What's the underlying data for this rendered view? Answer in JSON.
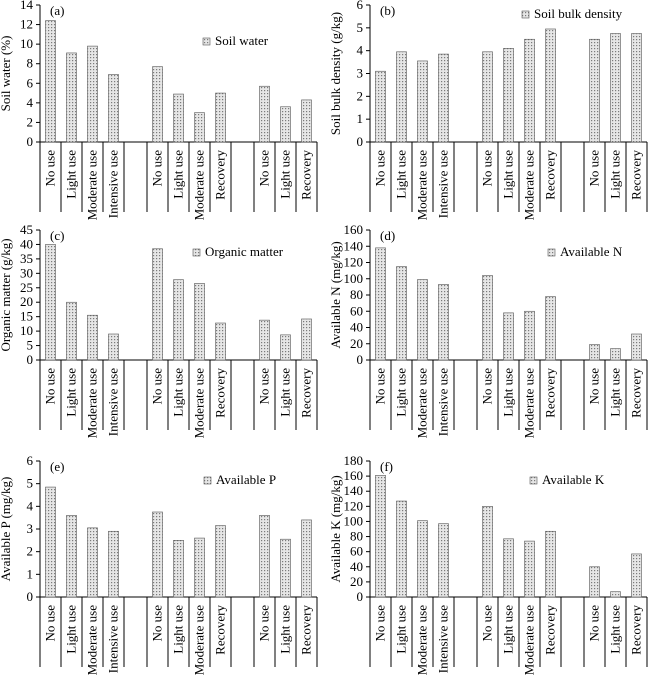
{
  "chart_data": [
    {
      "type": "bar",
      "panel_label": "(a)",
      "ylabel": "Soil water (%)",
      "legend": "Soil water",
      "ylim": [
        0,
        14
      ],
      "yticks": [
        0,
        2,
        4,
        6,
        8,
        10,
        12,
        14
      ],
      "groups": [
        {
          "categories": [
            "No use",
            "Light use",
            "Moderate use",
            "Intensive use"
          ],
          "values": [
            12.4,
            9.1,
            9.8,
            6.9
          ]
        },
        {
          "categories": [
            "No use",
            "Light use",
            "Moderate use",
            "Recovery"
          ],
          "values": [
            7.7,
            4.9,
            3.0,
            5.0
          ]
        },
        {
          "categories": [
            "No use",
            "Light use",
            "Recovery"
          ],
          "values": [
            5.7,
            3.6,
            4.3
          ]
        }
      ]
    },
    {
      "type": "bar",
      "panel_label": "(b)",
      "ylabel": "Soil bulk density (g/kg)",
      "legend": "Soil bulk density",
      "ylim": [
        0,
        6
      ],
      "yticks": [
        0,
        1,
        2,
        3,
        4,
        5,
        6
      ],
      "groups": [
        {
          "categories": [
            "No use",
            "Light use",
            "Moderate use",
            "Intensive use"
          ],
          "values": [
            3.1,
            3.95,
            3.55,
            3.85
          ]
        },
        {
          "categories": [
            "No use",
            "Light use",
            "Moderate use",
            "Recovery"
          ],
          "values": [
            3.95,
            4.1,
            4.5,
            4.95
          ]
        },
        {
          "categories": [
            "No use",
            "Light use",
            "Recovery"
          ],
          "values": [
            4.5,
            4.75,
            4.75
          ]
        }
      ]
    },
    {
      "type": "bar",
      "panel_label": "(c)",
      "ylabel": "Organic matter (g/kg)",
      "legend": "Organic matter",
      "ylim": [
        0,
        45
      ],
      "yticks": [
        0,
        5,
        10,
        15,
        20,
        25,
        30,
        35,
        40,
        45
      ],
      "groups": [
        {
          "categories": [
            "No use",
            "Light use",
            "Moderate use",
            "Intensive use"
          ],
          "values": [
            40,
            20,
            15.5,
            9
          ]
        },
        {
          "categories": [
            "No use",
            "Light use",
            "Moderate use",
            "Recovery"
          ],
          "values": [
            38.5,
            27.8,
            26.5,
            12.8
          ]
        },
        {
          "categories": [
            "No use",
            "Light use",
            "Recovery"
          ],
          "values": [
            13.8,
            8.7,
            14.2
          ]
        }
      ]
    },
    {
      "type": "bar",
      "panel_label": "(d)",
      "ylabel": "Available N (mg/kg)",
      "legend": "Available N",
      "ylim": [
        0,
        160
      ],
      "yticks": [
        0,
        20,
        40,
        60,
        80,
        100,
        120,
        140,
        160
      ],
      "groups": [
        {
          "categories": [
            "No use",
            "Light use",
            "Moderate use",
            "Intensive use"
          ],
          "values": [
            138,
            115,
            99,
            93
          ]
        },
        {
          "categories": [
            "No use",
            "Light use",
            "Moderate use",
            "Recovery"
          ],
          "values": [
            104,
            58,
            60,
            78
          ]
        },
        {
          "categories": [
            "No use",
            "Light use",
            "Recovery"
          ],
          "values": [
            19,
            14,
            32
          ]
        }
      ]
    },
    {
      "type": "bar",
      "panel_label": "(e)",
      "ylabel": "Available P (mg/kg)",
      "legend": "Available P",
      "ylim": [
        0,
        6
      ],
      "yticks": [
        0,
        1,
        2,
        3,
        4,
        5,
        6
      ],
      "groups": [
        {
          "categories": [
            "No use",
            "Light use",
            "Moderate use",
            "Intensive use"
          ],
          "values": [
            4.85,
            3.6,
            3.05,
            2.9
          ]
        },
        {
          "categories": [
            "No use",
            "Light use",
            "Moderate use",
            "Recovery"
          ],
          "values": [
            3.75,
            2.5,
            2.6,
            3.15
          ]
        },
        {
          "categories": [
            "No use",
            "Light use",
            "Recovery"
          ],
          "values": [
            3.6,
            2.55,
            3.4
          ]
        }
      ]
    },
    {
      "type": "bar",
      "panel_label": "(f)",
      "ylabel": "Available K (mg/kg)",
      "legend": "Available K",
      "ylim": [
        0,
        180
      ],
      "yticks": [
        0,
        20,
        40,
        60,
        80,
        100,
        120,
        140,
        160,
        180
      ],
      "groups": [
        {
          "categories": [
            "No use",
            "Light use",
            "Moderate use",
            "Intensive use"
          ],
          "values": [
            161,
            127,
            101,
            97
          ]
        },
        {
          "categories": [
            "No use",
            "Light use",
            "Moderate use",
            "Recovery"
          ],
          "values": [
            120,
            77,
            74,
            87
          ]
        },
        {
          "categories": [
            "No use",
            "Light use",
            "Recovery"
          ],
          "values": [
            40,
            7,
            57
          ]
        }
      ]
    }
  ],
  "colors": {
    "bar_fill": "#e6e6e6",
    "bar_dot": "#7a7a7a",
    "axis": "#000000"
  }
}
